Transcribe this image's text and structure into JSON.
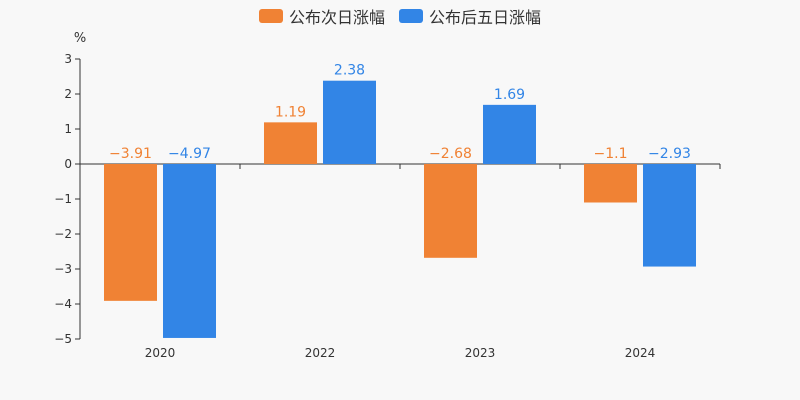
{
  "chart_data": {
    "type": "bar",
    "ylabel": "%",
    "ylim": [
      -5,
      3
    ],
    "yticks": [
      3,
      2,
      1,
      0,
      -1,
      -2,
      -3,
      -4,
      -5
    ],
    "ytick_labels": [
      "3",
      "2",
      "1",
      "0",
      "−1",
      "−2",
      "−3",
      "−4",
      "−5"
    ],
    "categories": [
      "2020",
      "2022",
      "2023",
      "2024"
    ],
    "legend_position": "top-center",
    "grid": false,
    "series": [
      {
        "name": "公布次日涨幅",
        "color": "#f08234",
        "values": [
          -3.91,
          1.19,
          -2.68,
          -1.1
        ],
        "labels": [
          "−3.91",
          "1.19",
          "−2.68",
          "−1.1"
        ]
      },
      {
        "name": "公布后五日涨幅",
        "color": "#3285e6",
        "values": [
          -4.97,
          2.38,
          1.69,
          -2.93
        ],
        "labels": [
          "−4.97",
          "2.38",
          "1.69",
          "−2.93"
        ]
      }
    ]
  }
}
